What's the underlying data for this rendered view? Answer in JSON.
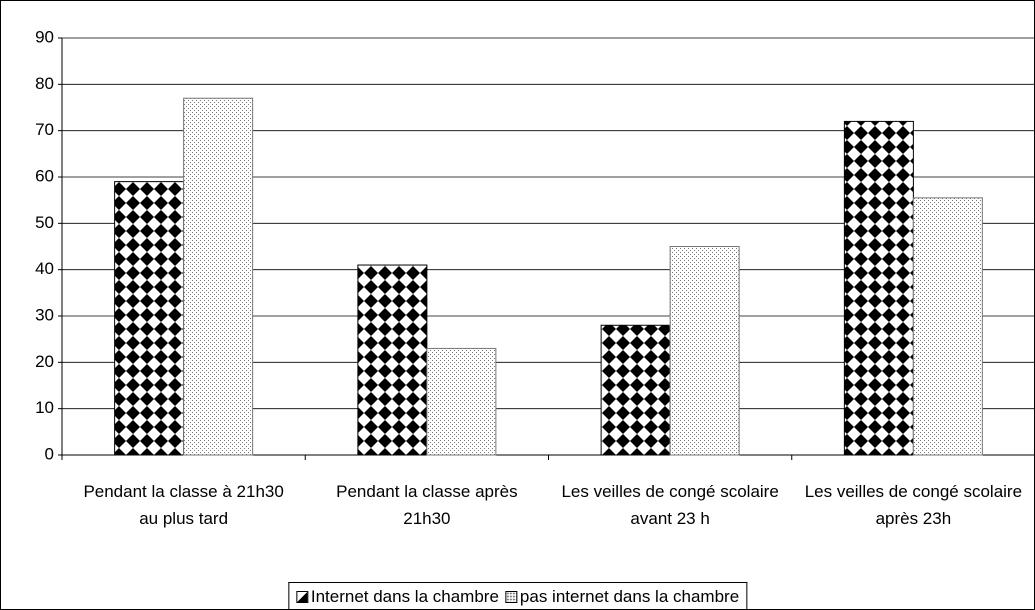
{
  "chart_data": {
    "type": "bar",
    "categories": [
      "Pendant la classe à 21h30 au plus tard",
      "Pendant la classe après 21h30",
      "Les veilles de congé scolaire avant 23 h",
      "Les veilles de congé scolaire après 23h"
    ],
    "series": [
      {
        "name": "Internet dans la chambre",
        "color": "#000000",
        "pattern": "diamonds",
        "values": [
          59,
          41,
          28,
          72
        ]
      },
      {
        "name": "pas internet dans la chambre",
        "color": "#777777",
        "pattern": "dots",
        "values": [
          77,
          23,
          45,
          55.5
        ]
      }
    ],
    "ylim": [
      0,
      90
    ],
    "yticks": [
      0,
      10,
      20,
      30,
      40,
      50,
      60,
      70,
      80,
      90
    ],
    "grid": true,
    "legend": "bottom"
  }
}
